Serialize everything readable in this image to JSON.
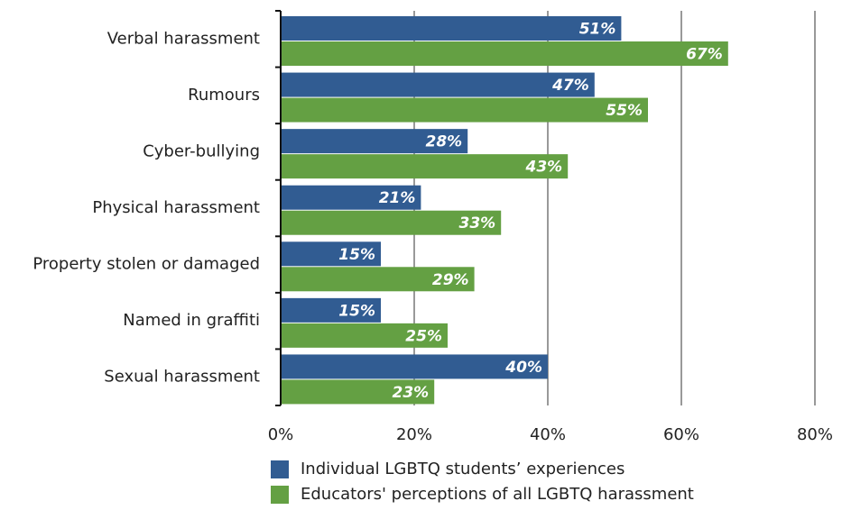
{
  "chart_data": {
    "type": "hbar",
    "categories": [
      "Verbal harassment",
      "Rumours",
      "Cyber-bullying",
      "Physical harassment",
      "Property stolen or damaged",
      "Named in graffiti",
      "Sexual harassment"
    ],
    "series": [
      {
        "name": "Individual LGBTQ students’ experiences",
        "color": "#315c92",
        "values": [
          51,
          47,
          28,
          21,
          15,
          15,
          40
        ],
        "value_labels": [
          "51%",
          "47%",
          "28%",
          "21%",
          "15%",
          "15%",
          "40%"
        ]
      },
      {
        "name": "Educators' perceptions of all LGBTQ harassment",
        "color": "#64a043",
        "values": [
          67,
          55,
          43,
          33,
          29,
          25,
          23
        ],
        "value_labels": [
          "67%",
          "55%",
          "43%",
          "33%",
          "29%",
          "25%",
          "23%"
        ]
      }
    ],
    "xlim": [
      0,
      80
    ],
    "xticks": [
      {
        "value": 0,
        "label": "0%"
      },
      {
        "value": 20,
        "label": "20%"
      },
      {
        "value": 40,
        "label": "40%"
      },
      {
        "value": 60,
        "label": "60%"
      },
      {
        "value": 80,
        "label": "80%"
      }
    ],
    "grid": true,
    "legend": "bottom"
  }
}
